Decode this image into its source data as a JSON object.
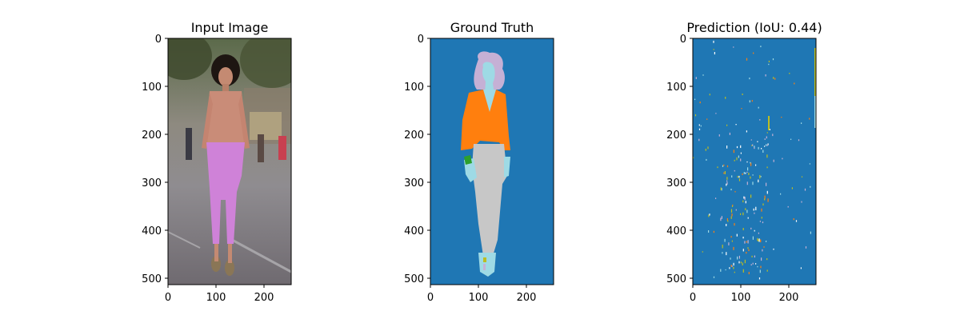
{
  "panels": [
    {
      "title": "Input Image",
      "x_ticks": [
        "0",
        "100",
        "200"
      ],
      "y_ticks": [
        "0",
        "100",
        "200",
        "300",
        "400",
        "500"
      ]
    },
    {
      "title": "Ground Truth",
      "x_ticks": [
        "0",
        "100",
        "200"
      ],
      "y_ticks": [
        "0",
        "100",
        "200",
        "300",
        "400",
        "500"
      ]
    },
    {
      "title": "Prediction (IoU: 0.44)",
      "x_ticks": [
        "0",
        "100",
        "200"
      ],
      "y_ticks": [
        "0",
        "100",
        "200",
        "300",
        "400",
        "500"
      ]
    }
  ],
  "colors": {
    "background_class": "#1f77b4",
    "upper_clothes": "#ff7f0e",
    "skin": "#9edae5",
    "hair": "#c5b0d5",
    "pants": "#c7c7c7",
    "accessory": "#2ca02c",
    "shoes": "#bcbd22"
  }
}
